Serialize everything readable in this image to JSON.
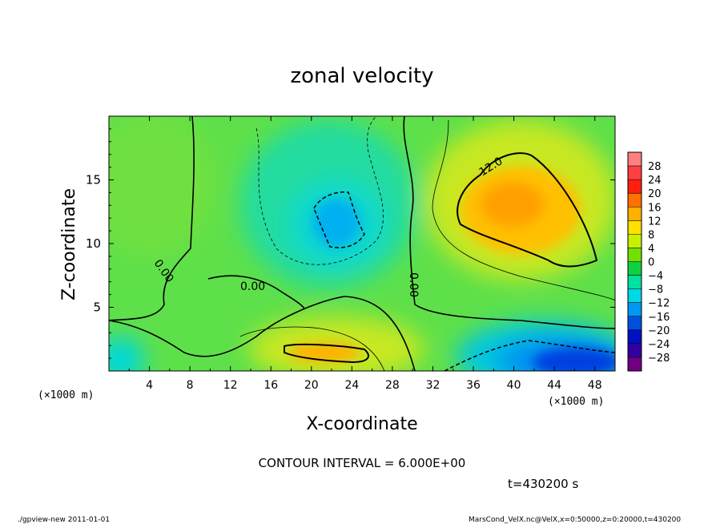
{
  "chart_data": {
    "type": "heatmap",
    "title": "zonal velocity",
    "xlabel": "X-coordinate",
    "ylabel": "Z-coordinate",
    "x_unit_label": "(×1000 m)",
    "y_unit_label": "(×1000 m)",
    "xlim": [
      0,
      50
    ],
    "ylim": [
      0,
      20
    ],
    "x_ticks": [
      "4",
      "8",
      "12",
      "16",
      "20",
      "24",
      "28",
      "32",
      "36",
      "40",
      "44",
      "48"
    ],
    "y_ticks": [
      "5",
      "10",
      "15"
    ],
    "colorbar_labels": [
      "28",
      "24",
      "20",
      "16",
      "12",
      "8",
      "4",
      "0",
      "−4",
      "−8",
      "−12",
      "−16",
      "−20",
      "−24",
      "−28"
    ],
    "colorbar_colors": [
      "#ff8080",
      "#ff4040",
      "#ff2010",
      "#ff7000",
      "#ffb000",
      "#ffe000",
      "#c8f000",
      "#70e000",
      "#10d040",
      "#00e0a0",
      "#00d8e8",
      "#0098f0",
      "#0050e0",
      "#0010c0",
      "#3000a0",
      "#700080"
    ],
    "contour_labels": [
      "12.0",
      "0.00",
      "0.00",
      "0.00"
    ],
    "contour_interval_text": "CONTOUR INTERVAL = 6.000E+00",
    "time_text": "t=430200 s",
    "features": [
      {
        "name": "positive core upper right",
        "x": 40,
        "z": 13,
        "value": 16
      },
      {
        "name": "positive core lower middle",
        "x": 22,
        "z": 1.5,
        "value": 14
      },
      {
        "name": "negative core middle",
        "x": 22,
        "z": 12,
        "value": -10
      },
      {
        "name": "negative core lower right",
        "x": 45,
        "z": 1.5,
        "value": -20
      }
    ]
  },
  "footer": {
    "program": "./gpview-new   2011-01-01",
    "source": "MarsCond_VelX.nc@VelX,x=0:50000,z=0:20000,t=430200"
  }
}
